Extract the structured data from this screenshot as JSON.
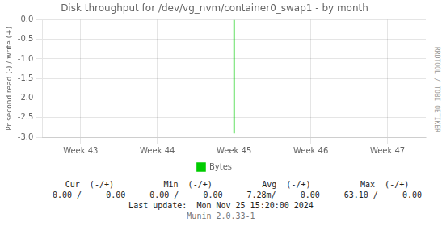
{
  "chart_data": {
    "type": "line",
    "title": "Disk throughput for /dev/vg_nvm/container0_swap1 - by month",
    "y_label": "Pr second read (-) / write (+)",
    "categories": [
      "Week 43",
      "Week 44",
      "Week 45",
      "Week 46",
      "Week 47"
    ],
    "series": [
      {
        "name": "Bytes",
        "color": "#00cc00",
        "x": [
          "Week 45",
          "Week 45"
        ],
        "values": [
          -2.9,
          0.0
        ]
      }
    ],
    "ylim": [
      -3.0,
      0.0
    ],
    "yticks": [
      {
        "value": 0.0,
        "label": "0.0"
      },
      -0.5,
      {
        "value": -1.0,
        "label": "-1.0"
      },
      -1.5,
      {
        "value": -2.0,
        "label": "-2.0"
      },
      -2.5,
      {
        "value": -3.0,
        "label": "-3.0"
      }
    ],
    "grid": true,
    "legend": "bottom",
    "annotations": [
      [
        "Cur  (-/+)",
        "Min  (-/+)",
        "Avg  (-/+)",
        "Max  (-/+)"
      ],
      [
        "0.00 /     0.00",
        "0.00 /     0.00",
        "7.28m/     0.00",
        "63.10 /     0.00"
      ],
      [
        "Last update:  Mon Nov 25 15:20:00 2024"
      ],
      [
        "Munin 2.0.33-1",
        "RRDTOOL / TOBI OETIKER"
      ]
    ]
  }
}
